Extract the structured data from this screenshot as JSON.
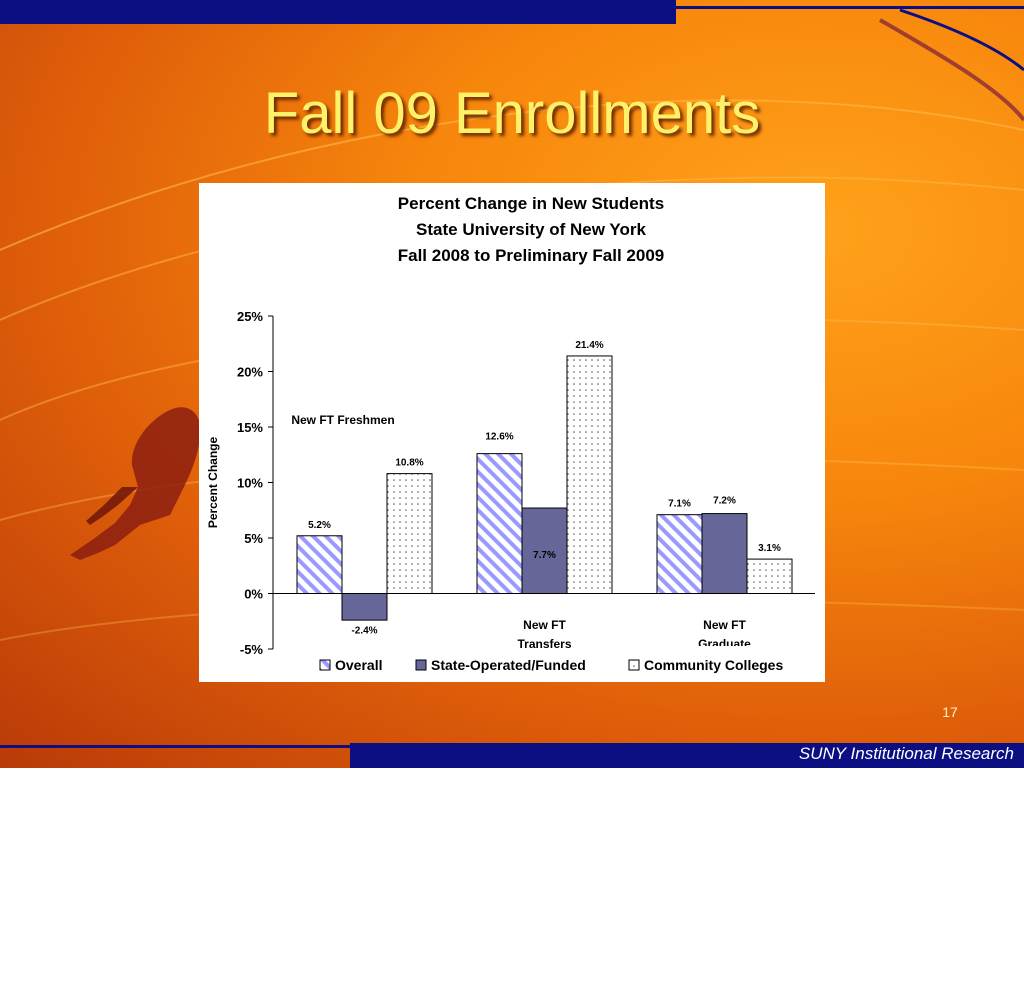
{
  "slide": {
    "title": "Fall 09 Enrollments",
    "page_number": "17",
    "footer": "SUNY Institutional Research"
  },
  "chart_data": {
    "type": "bar",
    "title": [
      "Percent Change in New Students",
      "State University of New York",
      "Fall 2008 to Preliminary Fall 2009"
    ],
    "ylabel": "Percent Change",
    "xlabel": "",
    "ylim": [
      -5,
      25
    ],
    "yticks": [
      25,
      20,
      15,
      10,
      5,
      0,
      -5
    ],
    "y_tick_suffix": "%",
    "categories": [
      "New FT Freshmen",
      "New FT Transfers",
      "New FT Graduate"
    ],
    "category_label_lines": [
      [
        "New FT Freshmen"
      ],
      [
        "New FT",
        "Transfers"
      ],
      [
        "New FT",
        "Graduate"
      ]
    ],
    "series": [
      {
        "name": "Overall",
        "values": [
          5.2,
          12.6,
          7.1
        ],
        "labels": [
          "5.2%",
          "12.6%",
          "7.1%"
        ],
        "color": "#9999ff",
        "pattern": "diagonal"
      },
      {
        "name": "State-Operated/Funded",
        "values": [
          -2.4,
          7.7,
          7.2
        ],
        "labels": [
          "-2.4%",
          "7.7%",
          "7.2%"
        ],
        "color": "#666699",
        "pattern": "solid"
      },
      {
        "name": "Community Colleges",
        "values": [
          10.8,
          21.4,
          3.1
        ],
        "labels": [
          "10.8%",
          "21.4%",
          "3.1%"
        ],
        "color": "#ffffff",
        "pattern": "dotted"
      }
    ],
    "legend_position": "bottom",
    "grid": false
  }
}
